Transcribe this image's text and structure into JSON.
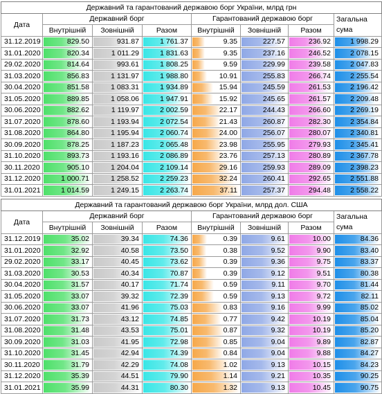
{
  "colors": {
    "green": "#4ee06a",
    "gray": "#c9c9c9",
    "cyan": "#39e6e6",
    "orange": "#f6a84a",
    "blue": "#8fa8e6",
    "pink": "#f07ce8",
    "total": "#1e8fe8"
  },
  "tables": [
    {
      "title": "Державний та гарантований державою борг України, млрд грн",
      "date_label": "Дата",
      "group_state": "Державний борг",
      "group_guar": "Гарантований державою борг",
      "total_label": "Загальна сума",
      "sub": [
        "Внутрішній",
        "Зовнішній",
        "Разом",
        "Внутрішній",
        "Зовнішній",
        "Разом"
      ],
      "rows": [
        [
          "31.12.2019",
          "829.50",
          "931.87",
          "1 761.37",
          "9.35",
          "227.57",
          "236.92",
          "1 998.29"
        ],
        [
          "31.01.2020",
          "820.34",
          "1 011.29",
          "1 831.63",
          "9.35",
          "237.16",
          "246.52",
          "2 078.15"
        ],
        [
          "29.02.2020",
          "814.64",
          "993.61",
          "1 808.25",
          "9.59",
          "229.99",
          "239.58",
          "2 047.83"
        ],
        [
          "31.03.2020",
          "856.83",
          "1 131.97",
          "1 988.80",
          "10.91",
          "255.83",
          "266.74",
          "2 255.54"
        ],
        [
          "30.04.2020",
          "851.58",
          "1 083.31",
          "1 934.89",
          "15.94",
          "245.59",
          "261.53",
          "2 196.42"
        ],
        [
          "31.05.2020",
          "889.85",
          "1 058.06",
          "1 947.91",
          "15.92",
          "245.65",
          "261.57",
          "2 209.48"
        ],
        [
          "30.06.2020",
          "882.62",
          "1 119.97",
          "2 002.59",
          "22.17",
          "244.43",
          "266.60",
          "2 269.19"
        ],
        [
          "31.07.2020",
          "878.60",
          "1 193.94",
          "2 072.54",
          "21.43",
          "260.87",
          "282.30",
          "2 354.84"
        ],
        [
          "31.08.2020",
          "864.80",
          "1 195.94",
          "2 060.74",
          "24.00",
          "256.07",
          "280.07",
          "2 340.81"
        ],
        [
          "30.09.2020",
          "878.25",
          "1 187.23",
          "2 065.48",
          "23.98",
          "255.95",
          "279.93",
          "2 345.41"
        ],
        [
          "31.10.2020",
          "893.73",
          "1 193.16",
          "2 086.89",
          "23.76",
          "257.13",
          "280.89",
          "2 367.78"
        ],
        [
          "30.11.2020",
          "905.10",
          "1 204.04",
          "2 109.14",
          "29.16",
          "259.93",
          "289.09",
          "2 398.23"
        ],
        [
          "31.12.2020",
          "1 000.71",
          "1 258.52",
          "2 259.23",
          "32.24",
          "260.41",
          "292.65",
          "2 551.88"
        ],
        [
          "31.01.2021",
          "1 014.59",
          "1 249.15",
          "2 263.74",
          "37.11",
          "257.37",
          "294.48",
          "2 558.22"
        ]
      ]
    },
    {
      "title": "Державний та гарантований державою борг України, млрд дол. США",
      "date_label": "Дата",
      "group_state": "Державний борг",
      "group_guar": "Гарантований державою борг",
      "total_label": "Загальна сума",
      "sub": [
        "Внутрішній",
        "Зовнішній",
        "Разом",
        "Внутрішній",
        "Зовнішній",
        "Разом"
      ],
      "rows": [
        [
          "31.12.2019",
          "35.02",
          "39.34",
          "74.36",
          "0.39",
          "9.61",
          "10.00",
          "84.36"
        ],
        [
          "31.01.2020",
          "32.92",
          "40.58",
          "73.50",
          "0.38",
          "9.52",
          "9.90",
          "83.40"
        ],
        [
          "29.02.2020",
          "33.17",
          "40.45",
          "73.62",
          "0.39",
          "9.36",
          "9.75",
          "83.37"
        ],
        [
          "31.03.2020",
          "30.53",
          "40.34",
          "70.87",
          "0.39",
          "9.12",
          "9.51",
          "80.38"
        ],
        [
          "30.04.2020",
          "31.57",
          "40.17",
          "71.74",
          "0.59",
          "9.11",
          "9.70",
          "81.44"
        ],
        [
          "31.05.2020",
          "33.07",
          "39.32",
          "72.39",
          "0.59",
          "9.13",
          "9.72",
          "82.11"
        ],
        [
          "30.06.2020",
          "33.07",
          "41.96",
          "75.03",
          "0.83",
          "9.16",
          "9.99",
          "85.02"
        ],
        [
          "31.07.2020",
          "31.73",
          "43.12",
          "74.85",
          "0.77",
          "9.42",
          "10.19",
          "85.04"
        ],
        [
          "31.08.2020",
          "31.48",
          "43.53",
          "75.01",
          "0.87",
          "9.32",
          "10.19",
          "85.20"
        ],
        [
          "30.09.2020",
          "31.03",
          "41.95",
          "72.98",
          "0.85",
          "9.04",
          "9.89",
          "82.87"
        ],
        [
          "31.10.2020",
          "31.45",
          "42.94",
          "74.39",
          "0.84",
          "9.04",
          "9.88",
          "84.27"
        ],
        [
          "30.11.2020",
          "31.79",
          "42.29",
          "74.08",
          "1.02",
          "9.13",
          "10.15",
          "84.23"
        ],
        [
          "31.12.2020",
          "35.39",
          "44.51",
          "79.90",
          "1.14",
          "9.21",
          "10.35",
          "90.25"
        ],
        [
          "31.01.2021",
          "35.99",
          "44.31",
          "80.30",
          "1.32",
          "9.13",
          "10.45",
          "90.75"
        ]
      ]
    }
  ]
}
